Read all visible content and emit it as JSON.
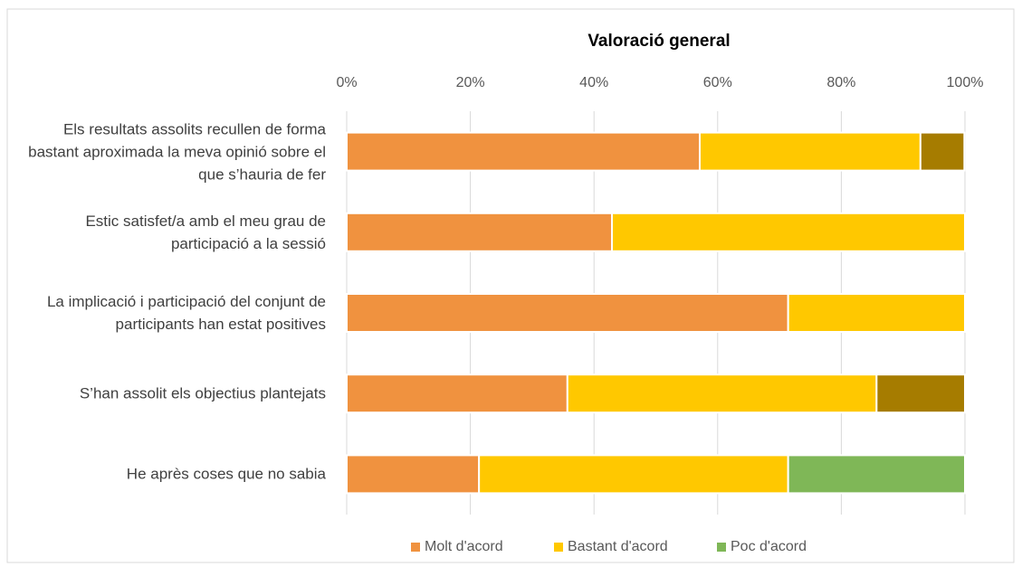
{
  "chart_data": {
    "type": "stacked_barh",
    "title": "Valoració general",
    "categories": [
      "Els resultats assolits recullen de forma bastant aproximada la meva opinió sobre el que s’hauria de fer",
      "Estic satisfet/a amb el meu grau de participació a la sessió",
      "La implicació i participació del conjunt de participants han estat positives",
      "S’han assolit els objectius plantejats",
      "He après coses que no sabia"
    ],
    "series": [
      {
        "name": "Molt d'acord",
        "color": "#f0923f",
        "values": [
          57.1,
          42.9,
          71.4,
          35.7,
          21.4
        ]
      },
      {
        "name": "Bastant d'acord",
        "color": "#ffc800",
        "values": [
          35.7,
          57.1,
          28.6,
          50,
          50
        ]
      },
      {
        "name": null,
        "color": "#a67c00",
        "values": [
          7.1,
          0,
          0,
          14.3,
          0
        ]
      },
      {
        "name": "Poc d'acord",
        "color": "#7fb757",
        "values": [
          0,
          0,
          0,
          0,
          28.6
        ]
      }
    ],
    "xlim": [
      0,
      100
    ],
    "xticks": [
      {
        "value": 0,
        "label": "0%"
      },
      {
        "value": 20,
        "label": "20%"
      },
      {
        "value": 40,
        "label": "40%"
      },
      {
        "value": 60,
        "label": "60%"
      },
      {
        "value": 80,
        "label": "80%"
      },
      {
        "value": 100,
        "label": "100%"
      }
    ],
    "grid": true,
    "legend": "bottom"
  }
}
